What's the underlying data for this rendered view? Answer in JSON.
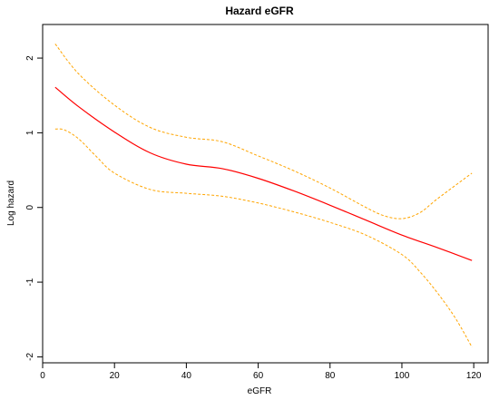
{
  "chart_data": {
    "type": "line",
    "title": "Hazard eGFR",
    "xlabel": "eGFR",
    "ylabel": "Log hazard",
    "xlim": [
      0,
      124
    ],
    "ylim": [
      -2.08,
      2.45
    ],
    "x_ticks": [
      0,
      20,
      40,
      60,
      80,
      100,
      120
    ],
    "y_ticks": [
      -2,
      -1,
      0,
      1,
      2
    ],
    "grid": false,
    "legend": "none",
    "series": [
      {
        "color": "#ff0000",
        "style": "solid",
        "x": [
          3.5,
          10,
          20,
          30,
          40,
          50,
          60,
          70,
          80,
          90,
          100,
          110,
          119.5
        ],
        "values": [
          1.61,
          1.35,
          1.01,
          0.73,
          0.58,
          0.52,
          0.39,
          0.22,
          0.03,
          -0.17,
          -0.37,
          -0.54,
          -0.71
        ]
      },
      {
        "color": "#ffa500",
        "style": "dashed",
        "x": [
          3.5,
          10,
          20,
          30,
          40,
          50,
          60,
          70,
          80,
          90,
          95,
          100,
          105,
          110,
          119.5
        ],
        "values": [
          2.19,
          1.79,
          1.37,
          1.07,
          0.94,
          0.88,
          0.69,
          0.49,
          0.26,
          0.0,
          -0.11,
          -0.15,
          -0.07,
          0.12,
          0.46
        ]
      },
      {
        "color": "#ffa500",
        "style": "dashed",
        "x": [
          3.5,
          6,
          10,
          15,
          20,
          30,
          40,
          50,
          60,
          70,
          80,
          90,
          100,
          105,
          110,
          115,
          119.5
        ],
        "values": [
          1.05,
          1.04,
          0.92,
          0.68,
          0.46,
          0.24,
          0.19,
          0.15,
          0.06,
          -0.06,
          -0.2,
          -0.37,
          -0.63,
          -0.86,
          -1.15,
          -1.49,
          -1.87
        ]
      }
    ]
  }
}
